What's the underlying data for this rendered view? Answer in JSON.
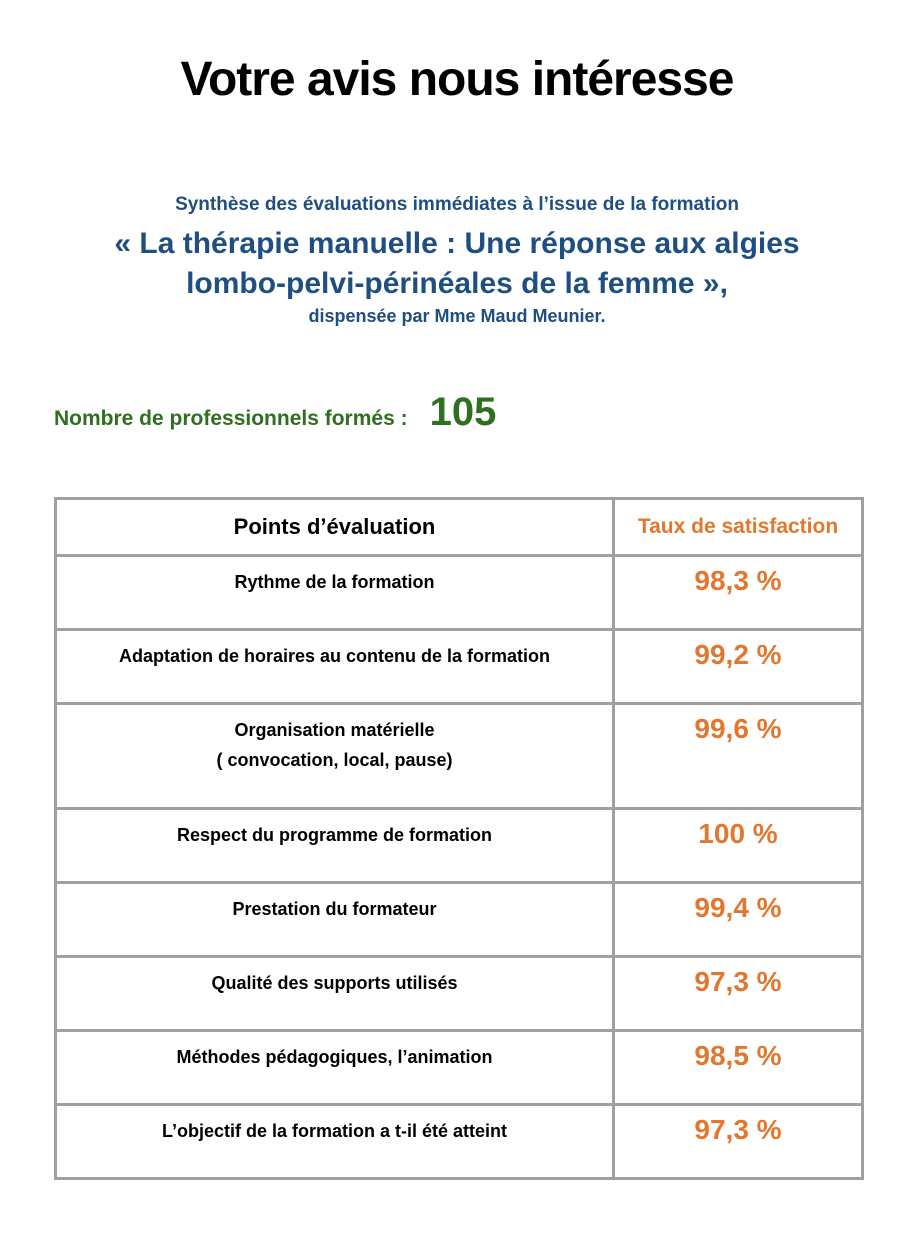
{
  "title": "Votre avis nous intéresse",
  "subtitle": {
    "intro": "Synthèse des évaluations immédiates à l’issue de la formation",
    "line1": "« La thérapie manuelle : Une réponse aux algies",
    "line2": "lombo-pelvi-périnéales de la femme »,",
    "by": "dispensée par Mme Maud Meunier."
  },
  "trained": {
    "label": "Nombre de professionnels formés :",
    "value": "105"
  },
  "table": {
    "headers": [
      "Points d’évaluation",
      "Taux de satisfaction"
    ],
    "rows": [
      {
        "point": "Rythme de la formation",
        "rate": "98,3 %"
      },
      {
        "point": "Adaptation de horaires au contenu de la formation",
        "rate": "99,2 %"
      },
      {
        "point": "Organisation matérielle",
        "point2": "( convocation, local, pause)",
        "rate": "99,6 %"
      },
      {
        "point": "Respect du programme de formation",
        "rate": "100 %"
      },
      {
        "point": "Prestation du formateur",
        "rate": "99,4 %"
      },
      {
        "point": "Qualité des supports utilisés",
        "rate": "97,3 %"
      },
      {
        "point": "Méthodes pédagogiques, l’animation",
        "rate": "98,5 %"
      },
      {
        "point": "L’objectif de la formation a t-il été atteint",
        "rate": "97,3 %"
      }
    ]
  },
  "colors": {
    "title_blue": "#1f4e80",
    "count_green": "#2f6f1f",
    "rate_orange": "#e2782f"
  }
}
